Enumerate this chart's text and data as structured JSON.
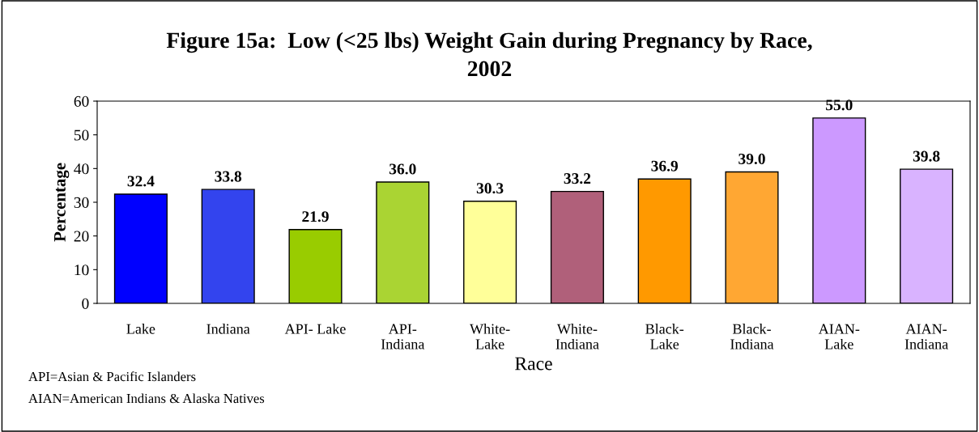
{
  "chart_data": {
    "type": "bar",
    "title": "Figure 15a:  Low (<25 lbs) Weight Gain during Pregnancy by Race,\n2002",
    "xlabel": "Race",
    "ylabel": "Percentage",
    "categories": [
      "Lake",
      "Indiana",
      "API- Lake",
      "API-\nIndiana",
      "White-\nLake",
      "White-\nIndiana",
      "Black-\nLake",
      "Black-\nIndiana",
      "AIAN-\nLake",
      "AIAN-\nIndiana"
    ],
    "values": [
      32.4,
      33.8,
      21.9,
      36.0,
      30.3,
      33.2,
      36.9,
      39.0,
      55.0,
      39.8
    ],
    "colors": [
      "#0000ff",
      "#3344ee",
      "#99cc00",
      "#aad433",
      "#ffff99",
      "#b0607a",
      "#ff9900",
      "#ffa733",
      "#cc99ff",
      "#d9b3ff"
    ],
    "value_labels": [
      "32.4",
      "33.8",
      "21.9",
      "36.0",
      "30.3",
      "33.2",
      "36.9",
      "39.0",
      "55.0",
      "39.8"
    ],
    "ylim": [
      0,
      60
    ],
    "yticks": [
      0,
      10,
      20,
      30,
      40,
      50,
      60
    ],
    "grid": false,
    "legend": false,
    "annotations": [
      "API=Asian & Pacific Islanders",
      "AIAN=American Indians & Alaska Natives"
    ]
  }
}
